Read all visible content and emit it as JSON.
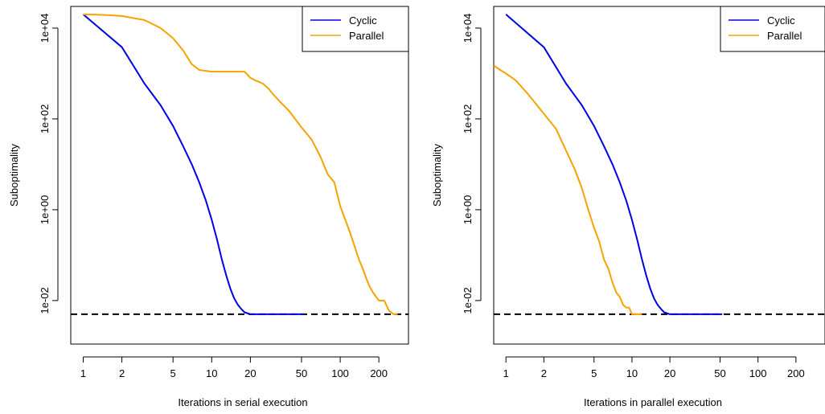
{
  "colors": {
    "cyclic": "#0000e6",
    "parallel": "#f5a300",
    "reference": "#000000"
  },
  "chart_data": [
    {
      "type": "line",
      "xlabel": "Iterations in serial execution",
      "ylabel": "Suboptimality",
      "x_scale": "log",
      "y_scale": "log",
      "xlim": [
        0.8,
        340
      ],
      "ylim": [
        0.0011,
        30000
      ],
      "x_ticks": [
        "1",
        "2",
        "5",
        "10",
        "20",
        "50",
        "100",
        "200"
      ],
      "y_ticks": [
        "1e-02",
        "1e+00",
        "1e+02",
        "1e+04"
      ],
      "reference_line": 0.005,
      "legend": {
        "position": "top-right",
        "entries": [
          "Cyclic",
          "Parallel"
        ]
      },
      "series": [
        {
          "name": "Cyclic",
          "x": [
            1,
            2,
            3,
            4,
            5,
            6,
            7,
            8,
            9,
            10,
            11,
            12,
            13,
            14,
            15,
            16,
            17,
            18,
            20,
            25,
            30,
            40,
            52
          ],
          "y": [
            20000,
            3800,
            600,
            200,
            70,
            25,
            10,
            4,
            1.6,
            0.6,
            0.22,
            0.08,
            0.035,
            0.018,
            0.011,
            0.008,
            0.0065,
            0.0055,
            0.005,
            0.005,
            0.005,
            0.005,
            0.005
          ]
        },
        {
          "name": "Parallel",
          "x": [
            1,
            1.5,
            2,
            3,
            4,
            5,
            6,
            7,
            8,
            10,
            12,
            15,
            18,
            20,
            22,
            25,
            28,
            30,
            35,
            40,
            50,
            60,
            70,
            80,
            90,
            100,
            120,
            140,
            150,
            160,
            170,
            180,
            200,
            220,
            240,
            260,
            280
          ],
          "y": [
            20000,
            19500,
            18500,
            15000,
            10000,
            6000,
            3200,
            1600,
            1200,
            1100,
            1100,
            1100,
            1100,
            800,
            700,
            600,
            450,
            350,
            220,
            150,
            65,
            35,
            15,
            6,
            4,
            1.2,
            0.3,
            0.08,
            0.05,
            0.03,
            0.02,
            0.015,
            0.01,
            0.01,
            0.006,
            0.005,
            0.005
          ]
        }
      ]
    },
    {
      "type": "line",
      "xlabel": "Iterations in parallel execution",
      "ylabel": "Suboptimality",
      "x_scale": "log",
      "y_scale": "log",
      "xlim": [
        0.8,
        340
      ],
      "ylim": [
        0.0011,
        30000
      ],
      "x_ticks": [
        "1",
        "2",
        "5",
        "10",
        "20",
        "50",
        "100",
        "200"
      ],
      "y_ticks": [
        "1e-02",
        "1e+00",
        "1e+02",
        "1e+04"
      ],
      "reference_line": 0.005,
      "legend": {
        "position": "top-right",
        "entries": [
          "Cyclic",
          "Parallel"
        ]
      },
      "series": [
        {
          "name": "Cyclic",
          "x": [
            1,
            2,
            3,
            4,
            5,
            6,
            7,
            8,
            9,
            10,
            11,
            12,
            13,
            14,
            15,
            16,
            17,
            18,
            20,
            25,
            30,
            40,
            52
          ],
          "y": [
            20000,
            3800,
            600,
            200,
            70,
            25,
            10,
            4,
            1.6,
            0.6,
            0.22,
            0.08,
            0.035,
            0.018,
            0.011,
            0.008,
            0.0065,
            0.0055,
            0.005,
            0.005,
            0.005,
            0.005,
            0.005
          ]
        },
        {
          "name": "Parallel",
          "x": [
            0.8,
            0.9,
            1,
            1.2,
            1.5,
            2,
            2.5,
            3,
            3.5,
            4,
            4.5,
            5,
            5.5,
            6,
            6.5,
            7,
            7.5,
            8,
            8.5,
            9,
            9.5,
            10,
            10.5,
            11,
            12
          ],
          "y": [
            1500,
            1200,
            1000,
            700,
            350,
            130,
            60,
            20,
            8,
            3,
            1,
            0.4,
            0.2,
            0.08,
            0.05,
            0.025,
            0.015,
            0.012,
            0.008,
            0.007,
            0.007,
            0.005,
            0.005,
            0.005,
            0.005
          ]
        }
      ]
    }
  ]
}
